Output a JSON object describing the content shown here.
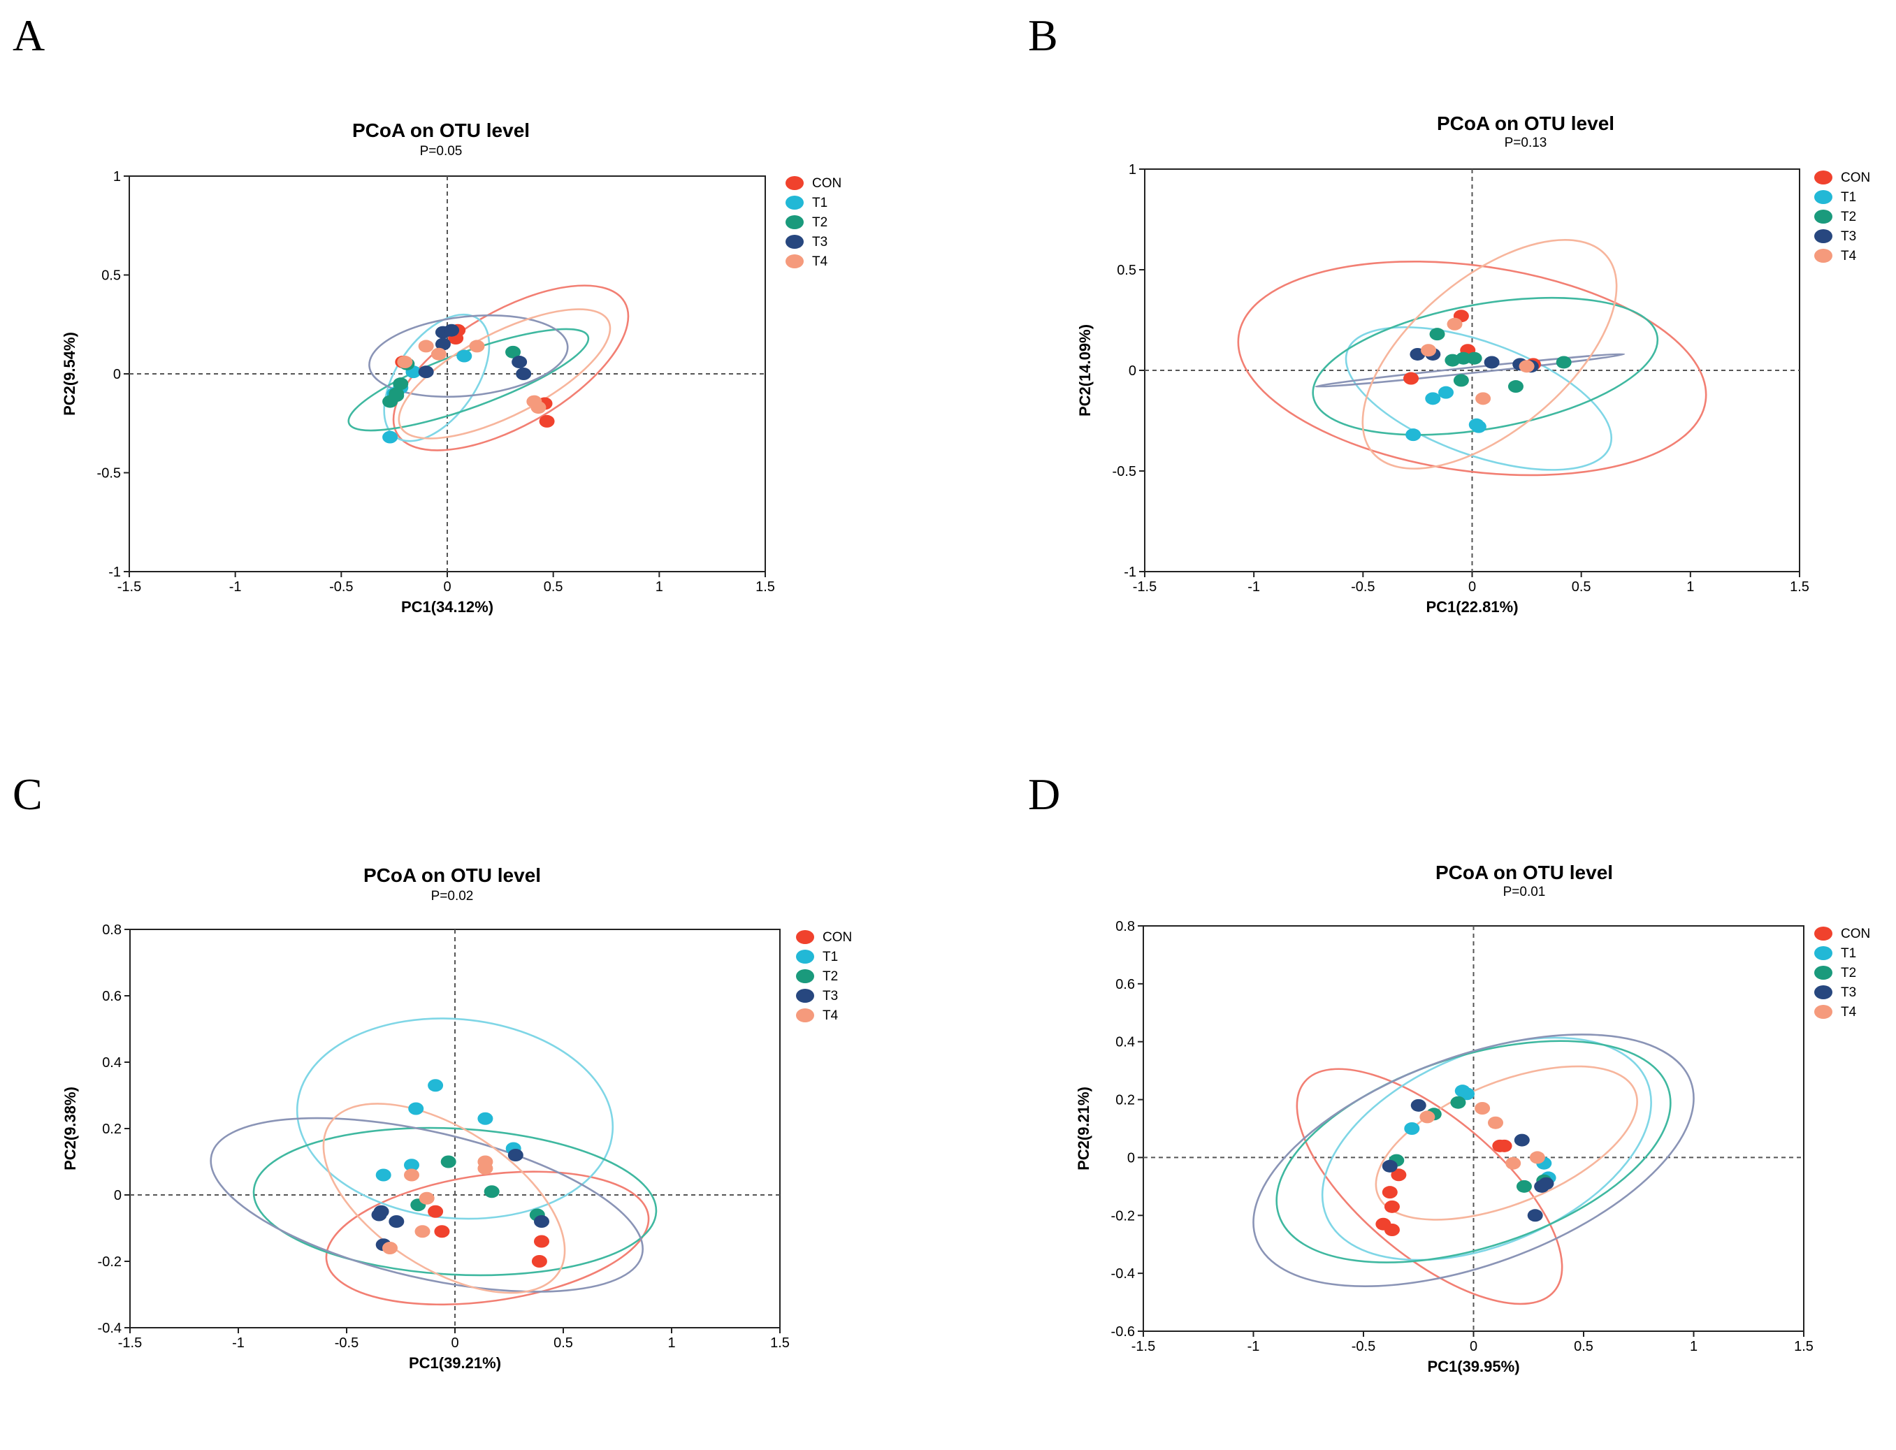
{
  "series_meta": [
    {
      "name": "CON",
      "color": "#f0422d"
    },
    {
      "name": "T1",
      "color": "#22b8d6"
    },
    {
      "name": "T2",
      "color": "#1a9a7c"
    },
    {
      "name": "T3",
      "color": "#27477f"
    },
    {
      "name": "T4",
      "color": "#f59a7c"
    }
  ],
  "ellipse_colors": {
    "CON": "#f27f73",
    "T1": "#7fd6e6",
    "T2": "#3fb8a0",
    "T3": "#8a94b6",
    "T4": "#f7b59c"
  },
  "chart_data": [
    {
      "panel_label": "A",
      "type": "scatter",
      "title": "PCoA on OTU level",
      "subtitle": "P=0.05",
      "xlabel": "PC1(34.12%)",
      "ylabel": "PC2(9.54%)",
      "xlim": [
        -1.5,
        1.5
      ],
      "ylim": [
        -1,
        1
      ],
      "xticks": [
        "-1.5",
        "-1",
        "-0.5",
        "0",
        "0.5",
        "1",
        "1.5"
      ],
      "xtick_values": [
        -1.5,
        -1,
        -0.5,
        0,
        0.5,
        1,
        1.5
      ],
      "yticks": [
        "-1",
        "-0.5",
        "0",
        "0.5",
        "1"
      ],
      "ytick_values": [
        -1,
        -0.5,
        0,
        0.5,
        1
      ],
      "legend_position": "top-right",
      "series": [
        {
          "name": "CON",
          "points": [
            [
              0.05,
              0.22
            ],
            [
              0.04,
              0.18
            ],
            [
              -0.21,
              0.06
            ],
            [
              0.46,
              -0.15
            ],
            [
              0.47,
              -0.24
            ]
          ],
          "ellipse": {
            "cx": 0.3,
            "cy": 0.03,
            "rx": 0.62,
            "ry": 0.29,
            "angle": -30
          }
        },
        {
          "name": "T1",
          "points": [
            [
              0.08,
              0.09
            ],
            [
              -0.16,
              0.01
            ],
            [
              -0.27,
              -0.32
            ],
            [
              -0.25,
              -0.1
            ],
            [
              -0.22,
              -0.07
            ]
          ],
          "ellipse": {
            "cx": -0.05,
            "cy": -0.02,
            "rx": 0.34,
            "ry": 0.2,
            "angle": -55
          }
        },
        {
          "name": "T2",
          "points": [
            [
              0.31,
              0.11
            ],
            [
              -0.27,
              -0.14
            ],
            [
              -0.24,
              -0.1
            ],
            [
              -0.22,
              -0.05
            ],
            [
              -0.19,
              0.05
            ],
            [
              -0.24,
              -0.11
            ]
          ],
          "ellipse": {
            "cx": 0.1,
            "cy": -0.03,
            "rx": 0.6,
            "ry": 0.14,
            "angle": -20
          }
        },
        {
          "name": "T3",
          "points": [
            [
              -0.02,
              0.21
            ],
            [
              -0.02,
              0.15
            ],
            [
              0.34,
              0.06
            ],
            [
              0.36,
              0.0
            ],
            [
              -0.1,
              0.01
            ],
            [
              0.02,
              0.22
            ]
          ],
          "ellipse": {
            "cx": 0.1,
            "cy": 0.09,
            "rx": 0.47,
            "ry": 0.2,
            "angle": -6
          }
        },
        {
          "name": "T4",
          "points": [
            [
              -0.2,
              0.06
            ],
            [
              -0.1,
              0.14
            ],
            [
              0.14,
              0.14
            ],
            [
              -0.04,
              0.1
            ],
            [
              0.41,
              -0.14
            ],
            [
              0.43,
              -0.17
            ]
          ],
          "ellipse": {
            "cx": 0.27,
            "cy": 0.0,
            "rx": 0.55,
            "ry": 0.21,
            "angle": -27
          }
        }
      ]
    },
    {
      "panel_label": "B",
      "type": "scatter",
      "title": "PCoA on OTU level",
      "subtitle": "P=0.13",
      "xlabel": "PC1(22.81%)",
      "ylabel": "PC2(14.09%)",
      "xlim": [
        -1.5,
        1.5
      ],
      "ylim": [
        -1,
        1
      ],
      "xticks": [
        "-1.5",
        "-1",
        "-0.5",
        "0",
        "0.5",
        "1",
        "1.5"
      ],
      "xtick_values": [
        -1.5,
        -1,
        -0.5,
        0,
        0.5,
        1,
        1.5
      ],
      "yticks": [
        "-1",
        "-0.5",
        "0",
        "0.5",
        "1"
      ],
      "ytick_values": [
        -1,
        -0.5,
        0,
        0.5,
        1
      ],
      "legend_position": "top-right",
      "series": [
        {
          "name": "CON",
          "points": [
            [
              -0.05,
              0.27
            ],
            [
              -0.02,
              0.1
            ],
            [
              0.28,
              0.03
            ],
            [
              -0.28,
              -0.04
            ]
          ],
          "ellipse": {
            "cx": 0.0,
            "cy": 0.01,
            "rx": 1.08,
            "ry": 0.51,
            "angle": 8
          }
        },
        {
          "name": "T1",
          "points": [
            [
              -0.18,
              -0.14
            ],
            [
              -0.12,
              -0.11
            ],
            [
              0.03,
              -0.28
            ],
            [
              0.02,
              -0.27
            ],
            [
              -0.27,
              -0.32
            ]
          ],
          "ellipse": {
            "cx": 0.03,
            "cy": -0.14,
            "rx": 0.64,
            "ry": 0.28,
            "angle": 20
          }
        },
        {
          "name": "T2",
          "points": [
            [
              -0.16,
              0.18
            ],
            [
              -0.09,
              0.05
            ],
            [
              -0.04,
              0.06
            ],
            [
              0.01,
              0.06
            ],
            [
              0.42,
              0.04
            ],
            [
              0.2,
              -0.08
            ],
            [
              -0.05,
              -0.05
            ]
          ],
          "ellipse": {
            "cx": 0.06,
            "cy": 0.02,
            "rx": 0.8,
            "ry": 0.31,
            "angle": -10
          }
        },
        {
          "name": "T3",
          "points": [
            [
              -0.25,
              0.08
            ],
            [
              -0.18,
              0.08
            ],
            [
              0.09,
              0.04
            ],
            [
              0.22,
              0.03
            ],
            [
              0.27,
              0.02
            ]
          ],
          "ellipse": {
            "cx": -0.01,
            "cy": 0.0,
            "rx": 0.71,
            "ry": 0.014,
            "angle": -6
          }
        },
        {
          "name": "T4",
          "points": [
            [
              -0.08,
              0.23
            ],
            [
              -0.2,
              0.1
            ],
            [
              0.05,
              -0.14
            ],
            [
              0.25,
              0.02
            ]
          ],
          "ellipse": {
            "cx": 0.08,
            "cy": 0.08,
            "rx": 0.7,
            "ry": 0.38,
            "angle": -40
          }
        }
      ]
    },
    {
      "panel_label": "C",
      "type": "scatter",
      "title": "PCoA on OTU level",
      "subtitle": "P=0.02",
      "xlabel": "PC1(39.21%)",
      "ylabel": "PC2(9.38%)",
      "xlim": [
        -1.5,
        1.5
      ],
      "ylim": [
        -0.4,
        0.8
      ],
      "xticks": [
        "-1.5",
        "-1",
        "-0.5",
        "0",
        "0.5",
        "1",
        "1.5"
      ],
      "xtick_values": [
        -1.5,
        -1,
        -0.5,
        0,
        0.5,
        1,
        1.5
      ],
      "yticks": [
        "-0.4",
        "-0.2",
        "0",
        "0.2",
        "0.4",
        "0.6",
        "0.8"
      ],
      "ytick_values": [
        -0.4,
        -0.2,
        0,
        0.2,
        0.4,
        0.6,
        0.8
      ],
      "legend_position": "top-right",
      "series": [
        {
          "name": "CON",
          "points": [
            [
              -0.09,
              -0.05
            ],
            [
              -0.06,
              -0.11
            ],
            [
              0.4,
              -0.14
            ],
            [
              0.39,
              -0.2
            ]
          ],
          "ellipse": {
            "cx": 0.15,
            "cy": -0.13,
            "rx": 0.75,
            "ry": 0.19,
            "angle": -8
          }
        },
        {
          "name": "T1",
          "points": [
            [
              -0.09,
              0.33
            ],
            [
              -0.18,
              0.26
            ],
            [
              0.14,
              0.23
            ],
            [
              0.27,
              0.14
            ],
            [
              -0.33,
              0.06
            ],
            [
              -0.2,
              0.09
            ]
          ],
          "ellipse": {
            "cx": 0.0,
            "cy": 0.23,
            "rx": 0.73,
            "ry": 0.3,
            "angle": 5
          }
        },
        {
          "name": "T2",
          "points": [
            [
              -0.03,
              0.1
            ],
            [
              0.17,
              0.01
            ],
            [
              -0.17,
              -0.03
            ],
            [
              0.38,
              -0.06
            ]
          ],
          "ellipse": {
            "cx": 0.0,
            "cy": -0.02,
            "rx": 0.93,
            "ry": 0.22,
            "angle": 3
          }
        },
        {
          "name": "T3",
          "points": [
            [
              0.28,
              0.12
            ],
            [
              -0.35,
              -0.06
            ],
            [
              -0.34,
              -0.05
            ],
            [
              -0.27,
              -0.08
            ],
            [
              0.4,
              -0.08
            ],
            [
              -0.33,
              -0.15
            ]
          ],
          "ellipse": {
            "cx": -0.13,
            "cy": -0.03,
            "rx": 1.02,
            "ry": 0.22,
            "angle": 13
          }
        },
        {
          "name": "T4",
          "points": [
            [
              0.14,
              0.1
            ],
            [
              -0.2,
              0.06
            ],
            [
              0.14,
              0.08
            ],
            [
              -0.13,
              -0.01
            ],
            [
              -0.15,
              -0.11
            ],
            [
              -0.3,
              -0.16
            ]
          ],
          "ellipse": {
            "cx": -0.05,
            "cy": -0.01,
            "rx": 0.63,
            "ry": 0.21,
            "angle": 33
          }
        }
      ]
    },
    {
      "panel_label": "D",
      "type": "scatter",
      "title": "PCoA on OTU level",
      "subtitle": "P=0.01",
      "xlabel": "PC1(39.95%)",
      "ylabel": "PC2(9.21%)",
      "xlim": [
        -1.5,
        1.5
      ],
      "ylim": [
        -0.6,
        0.8
      ],
      "xticks": [
        "-1.5",
        "-1",
        "-0.5",
        "0",
        "0.5",
        "1",
        "1.5"
      ],
      "xtick_values": [
        -1.5,
        -1,
        -0.5,
        0,
        0.5,
        1,
        1.5
      ],
      "yticks": [
        "-0.6",
        "-0.4",
        "-0.2",
        "0",
        "0.2",
        "0.4",
        "0.6",
        "0.8"
      ],
      "ytick_values": [
        -0.6,
        -0.4,
        -0.2,
        0,
        0.2,
        0.4,
        0.6,
        0.8
      ],
      "legend_position": "top-right",
      "series": [
        {
          "name": "CON",
          "points": [
            [
              -0.34,
              -0.06
            ],
            [
              -0.38,
              -0.12
            ],
            [
              -0.37,
              -0.17
            ],
            [
              -0.41,
              -0.23
            ],
            [
              -0.37,
              -0.25
            ],
            [
              0.12,
              0.04
            ],
            [
              0.14,
              0.04
            ]
          ],
          "ellipse": {
            "cx": -0.2,
            "cy": -0.1,
            "rx": 0.74,
            "ry": 0.24,
            "angle": 40
          }
        },
        {
          "name": "T1",
          "points": [
            [
              -0.05,
              0.23
            ],
            [
              -0.03,
              0.22
            ],
            [
              -0.28,
              0.1
            ],
            [
              0.32,
              -0.02
            ],
            [
              0.34,
              -0.07
            ]
          ],
          "ellipse": {
            "cx": 0.06,
            "cy": 0.03,
            "rx": 0.79,
            "ry": 0.33,
            "angle": -23
          }
        },
        {
          "name": "T2",
          "points": [
            [
              -0.07,
              0.19
            ],
            [
              -0.35,
              -0.01
            ],
            [
              -0.18,
              0.15
            ],
            [
              0.32,
              -0.08
            ],
            [
              0.23,
              -0.1
            ]
          ],
          "ellipse": {
            "cx": 0.0,
            "cy": 0.02,
            "rx": 0.93,
            "ry": 0.33,
            "angle": -18
          }
        },
        {
          "name": "T3",
          "points": [
            [
              -0.25,
              0.18
            ],
            [
              0.22,
              0.06
            ],
            [
              -0.38,
              -0.03
            ],
            [
              0.31,
              -0.1
            ],
            [
              0.28,
              -0.2
            ],
            [
              0.33,
              -0.09
            ]
          ],
          "ellipse": {
            "cx": 0.0,
            "cy": -0.01,
            "rx": 1.05,
            "ry": 0.36,
            "angle": -20
          }
        },
        {
          "name": "T4",
          "points": [
            [
              -0.21,
              0.14
            ],
            [
              0.04,
              0.17
            ],
            [
              0.1,
              0.12
            ],
            [
              0.29,
              0.0
            ],
            [
              0.18,
              -0.02
            ]
          ],
          "ellipse": {
            "cx": 0.15,
            "cy": 0.05,
            "rx": 0.63,
            "ry": 0.21,
            "angle": -22
          }
        }
      ]
    }
  ]
}
